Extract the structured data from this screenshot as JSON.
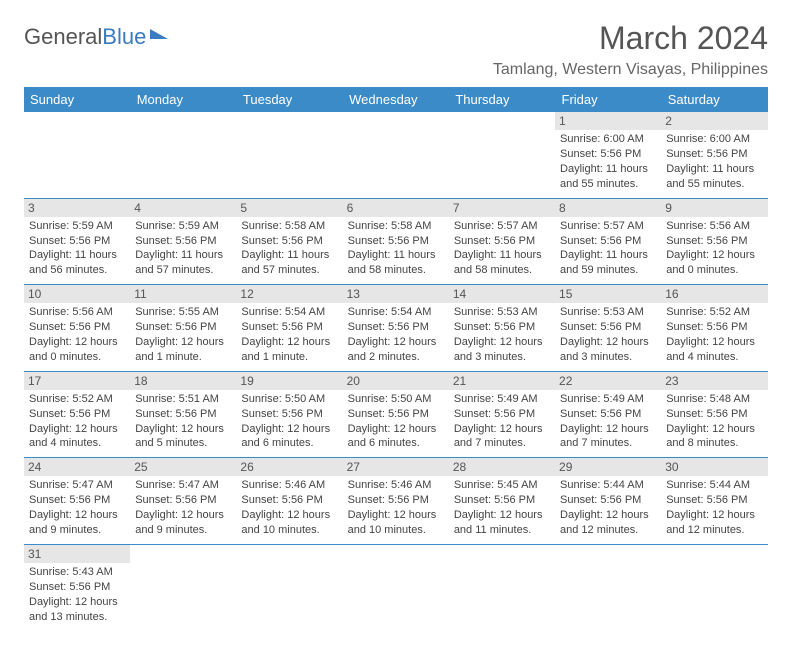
{
  "logo": {
    "part1": "General",
    "part2": "Blue"
  },
  "title": "March 2024",
  "location": "Tamlang, Western Visayas, Philippines",
  "dayHeaders": [
    "Sunday",
    "Monday",
    "Tuesday",
    "Wednesday",
    "Thursday",
    "Friday",
    "Saturday"
  ],
  "colors": {
    "header": "#3b8bc9",
    "border": "#3b8bc9",
    "dayBg": "#e6e6e6"
  },
  "rows": [
    [
      null,
      null,
      null,
      null,
      null,
      {
        "n": "1",
        "sr": "Sunrise: 6:00 AM",
        "ss": "Sunset: 5:56 PM",
        "dl": "Daylight: 11 hours and 55 minutes."
      },
      {
        "n": "2",
        "sr": "Sunrise: 6:00 AM",
        "ss": "Sunset: 5:56 PM",
        "dl": "Daylight: 11 hours and 55 minutes."
      }
    ],
    [
      {
        "n": "3",
        "sr": "Sunrise: 5:59 AM",
        "ss": "Sunset: 5:56 PM",
        "dl": "Daylight: 11 hours and 56 minutes."
      },
      {
        "n": "4",
        "sr": "Sunrise: 5:59 AM",
        "ss": "Sunset: 5:56 PM",
        "dl": "Daylight: 11 hours and 57 minutes."
      },
      {
        "n": "5",
        "sr": "Sunrise: 5:58 AM",
        "ss": "Sunset: 5:56 PM",
        "dl": "Daylight: 11 hours and 57 minutes."
      },
      {
        "n": "6",
        "sr": "Sunrise: 5:58 AM",
        "ss": "Sunset: 5:56 PM",
        "dl": "Daylight: 11 hours and 58 minutes."
      },
      {
        "n": "7",
        "sr": "Sunrise: 5:57 AM",
        "ss": "Sunset: 5:56 PM",
        "dl": "Daylight: 11 hours and 58 minutes."
      },
      {
        "n": "8",
        "sr": "Sunrise: 5:57 AM",
        "ss": "Sunset: 5:56 PM",
        "dl": "Daylight: 11 hours and 59 minutes."
      },
      {
        "n": "9",
        "sr": "Sunrise: 5:56 AM",
        "ss": "Sunset: 5:56 PM",
        "dl": "Daylight: 12 hours and 0 minutes."
      }
    ],
    [
      {
        "n": "10",
        "sr": "Sunrise: 5:56 AM",
        "ss": "Sunset: 5:56 PM",
        "dl": "Daylight: 12 hours and 0 minutes."
      },
      {
        "n": "11",
        "sr": "Sunrise: 5:55 AM",
        "ss": "Sunset: 5:56 PM",
        "dl": "Daylight: 12 hours and 1 minute."
      },
      {
        "n": "12",
        "sr": "Sunrise: 5:54 AM",
        "ss": "Sunset: 5:56 PM",
        "dl": "Daylight: 12 hours and 1 minute."
      },
      {
        "n": "13",
        "sr": "Sunrise: 5:54 AM",
        "ss": "Sunset: 5:56 PM",
        "dl": "Daylight: 12 hours and 2 minutes."
      },
      {
        "n": "14",
        "sr": "Sunrise: 5:53 AM",
        "ss": "Sunset: 5:56 PM",
        "dl": "Daylight: 12 hours and 3 minutes."
      },
      {
        "n": "15",
        "sr": "Sunrise: 5:53 AM",
        "ss": "Sunset: 5:56 PM",
        "dl": "Daylight: 12 hours and 3 minutes."
      },
      {
        "n": "16",
        "sr": "Sunrise: 5:52 AM",
        "ss": "Sunset: 5:56 PM",
        "dl": "Daylight: 12 hours and 4 minutes."
      }
    ],
    [
      {
        "n": "17",
        "sr": "Sunrise: 5:52 AM",
        "ss": "Sunset: 5:56 PM",
        "dl": "Daylight: 12 hours and 4 minutes."
      },
      {
        "n": "18",
        "sr": "Sunrise: 5:51 AM",
        "ss": "Sunset: 5:56 PM",
        "dl": "Daylight: 12 hours and 5 minutes."
      },
      {
        "n": "19",
        "sr": "Sunrise: 5:50 AM",
        "ss": "Sunset: 5:56 PM",
        "dl": "Daylight: 12 hours and 6 minutes."
      },
      {
        "n": "20",
        "sr": "Sunrise: 5:50 AM",
        "ss": "Sunset: 5:56 PM",
        "dl": "Daylight: 12 hours and 6 minutes."
      },
      {
        "n": "21",
        "sr": "Sunrise: 5:49 AM",
        "ss": "Sunset: 5:56 PM",
        "dl": "Daylight: 12 hours and 7 minutes."
      },
      {
        "n": "22",
        "sr": "Sunrise: 5:49 AM",
        "ss": "Sunset: 5:56 PM",
        "dl": "Daylight: 12 hours and 7 minutes."
      },
      {
        "n": "23",
        "sr": "Sunrise: 5:48 AM",
        "ss": "Sunset: 5:56 PM",
        "dl": "Daylight: 12 hours and 8 minutes."
      }
    ],
    [
      {
        "n": "24",
        "sr": "Sunrise: 5:47 AM",
        "ss": "Sunset: 5:56 PM",
        "dl": "Daylight: 12 hours and 9 minutes."
      },
      {
        "n": "25",
        "sr": "Sunrise: 5:47 AM",
        "ss": "Sunset: 5:56 PM",
        "dl": "Daylight: 12 hours and 9 minutes."
      },
      {
        "n": "26",
        "sr": "Sunrise: 5:46 AM",
        "ss": "Sunset: 5:56 PM",
        "dl": "Daylight: 12 hours and 10 minutes."
      },
      {
        "n": "27",
        "sr": "Sunrise: 5:46 AM",
        "ss": "Sunset: 5:56 PM",
        "dl": "Daylight: 12 hours and 10 minutes."
      },
      {
        "n": "28",
        "sr": "Sunrise: 5:45 AM",
        "ss": "Sunset: 5:56 PM",
        "dl": "Daylight: 12 hours and 11 minutes."
      },
      {
        "n": "29",
        "sr": "Sunrise: 5:44 AM",
        "ss": "Sunset: 5:56 PM",
        "dl": "Daylight: 12 hours and 12 minutes."
      },
      {
        "n": "30",
        "sr": "Sunrise: 5:44 AM",
        "ss": "Sunset: 5:56 PM",
        "dl": "Daylight: 12 hours and 12 minutes."
      }
    ],
    [
      {
        "n": "31",
        "sr": "Sunrise: 5:43 AM",
        "ss": "Sunset: 5:56 PM",
        "dl": "Daylight: 12 hours and 13 minutes."
      },
      null,
      null,
      null,
      null,
      null,
      null
    ]
  ]
}
